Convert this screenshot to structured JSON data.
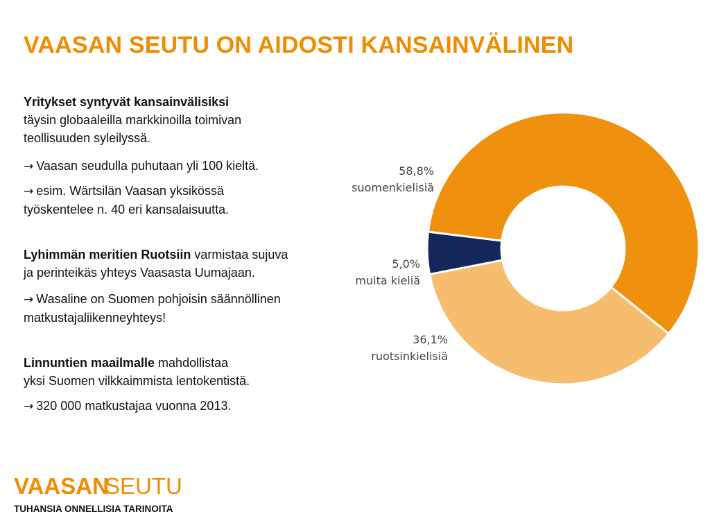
{
  "slide": {
    "title": "VAASAN SEUTU ON AIDOSTI KANSAINVÄLINEN",
    "accent_color": "#f08c00"
  },
  "text": {
    "block1": {
      "bold": "Yritykset syntyvät kansainvälisiksi",
      "line1": "täysin globaaleilla markkinoilla toimivan",
      "line2": "teollisuuden syleilyssä.",
      "arrow1": "Vaasan seudulla puhutaan yli 100 kieltä.",
      "arrow2_line1": "esim. Wärtsilän Vaasan yksikössä",
      "arrow2_line2": "työskentelee n. 40 eri kansalaisuutta."
    },
    "block2": {
      "bold": "Lyhimmän meritien Ruotsiin",
      "rest": " varmistaa sujuva",
      "line2": "ja perinteikäs yhteys Vaasasta Uumajaan.",
      "arrow1_line1": "Wasaline on Suomen pohjoisin säännöllinen",
      "arrow1_line2": "matkustajaliikenneyhteys!"
    },
    "block3": {
      "bold": "Linnuntien maailmalle",
      "rest": " mahdollistaa",
      "line2": "yksi Suomen vilkkaimmista lentokentistä.",
      "arrow1": "320 000 matkustajaa vuonna 2013."
    },
    "arrow_symbol": "→"
  },
  "chart_data": {
    "type": "pie",
    "subtype": "donut",
    "title": "",
    "series": [
      {
        "name": "suomenkielisiä",
        "value": 58.8,
        "label": "58,8%",
        "color": "#f0900f"
      },
      {
        "name": "ruotsinkielisiä",
        "value": 36.1,
        "label": "36,1%",
        "color": "#f6bd6e"
      },
      {
        "name": "muita kieliä",
        "value": 5.0,
        "label": "5,0%",
        "color": "#14275a"
      }
    ],
    "start_angle_deg": -173,
    "direction": "clockwise"
  },
  "logo": {
    "word1": "VAASAN",
    "word2": "SEUTU",
    "tagline": "TUHANSIA ONNELLISIA TARINOITA",
    "color": "#f08c00"
  }
}
